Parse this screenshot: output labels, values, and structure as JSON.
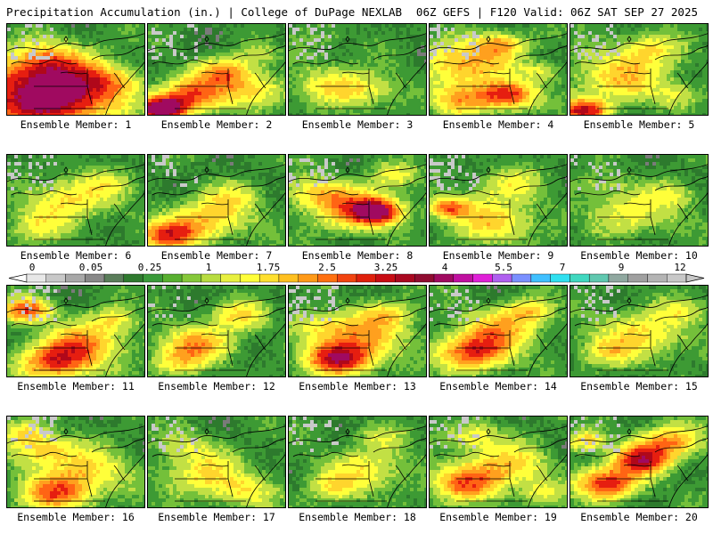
{
  "header": {
    "title_left": "Precipitation Accumulation (in.) | College of DuPage NEXLAB",
    "title_right": "06Z GEFS | F120 Valid: 06Z SAT SEP 27 2025"
  },
  "panels": [
    {
      "label": "Ensemble Member: 1",
      "hotspots": [
        [
          0.18,
          0.78,
          0.9,
          3.0
        ],
        [
          0.45,
          0.72,
          0.6,
          1.6
        ],
        [
          0.3,
          0.45,
          0.5,
          1.4
        ],
        [
          0.75,
          0.6,
          0.35,
          1.0
        ],
        [
          0.25,
          0.3,
          0.35,
          0.6
        ]
      ]
    },
    {
      "label": "Ensemble Member: 2",
      "hotspots": [
        [
          0.08,
          0.9,
          0.28,
          4.2
        ],
        [
          0.3,
          0.75,
          0.45,
          2.4
        ],
        [
          0.55,
          0.5,
          0.35,
          2.0
        ],
        [
          0.75,
          0.7,
          0.4,
          1.4
        ],
        [
          0.8,
          0.3,
          0.25,
          0.6
        ]
      ]
    },
    {
      "label": "Ensemble Member: 3",
      "hotspots": [
        [
          0.3,
          0.65,
          0.5,
          1.2
        ],
        [
          0.6,
          0.7,
          0.4,
          0.8
        ],
        [
          0.2,
          0.2,
          0.4,
          0.4
        ]
      ]
    },
    {
      "label": "Ensemble Member: 4",
      "hotspots": [
        [
          0.55,
          0.75,
          0.35,
          2.8
        ],
        [
          0.25,
          0.4,
          0.55,
          2.0
        ],
        [
          0.5,
          0.2,
          0.3,
          1.5
        ],
        [
          0.8,
          0.5,
          0.25,
          1.0
        ],
        [
          0.2,
          0.8,
          0.4,
          1.6
        ]
      ]
    },
    {
      "label": "Ensemble Member: 5",
      "hotspots": [
        [
          0.08,
          0.92,
          0.3,
          3.0
        ],
        [
          0.35,
          0.55,
          0.6,
          1.6
        ],
        [
          0.55,
          0.25,
          0.4,
          1.2
        ],
        [
          0.75,
          0.75,
          0.3,
          0.9
        ]
      ]
    },
    {
      "label": "Ensemble Member: 6",
      "hotspots": [
        [
          0.45,
          0.45,
          0.55,
          1.4
        ],
        [
          0.2,
          0.75,
          0.4,
          1.0
        ],
        [
          0.75,
          0.3,
          0.3,
          0.7
        ]
      ]
    },
    {
      "label": "Ensemble Member: 7",
      "hotspots": [
        [
          0.12,
          0.85,
          0.35,
          2.5
        ],
        [
          0.4,
          0.7,
          0.5,
          1.6
        ],
        [
          0.6,
          0.45,
          0.4,
          1.0
        ]
      ]
    },
    {
      "label": "Ensemble Member: 8",
      "hotspots": [
        [
          0.62,
          0.6,
          0.3,
          3.3
        ],
        [
          0.45,
          0.55,
          0.55,
          1.8
        ],
        [
          0.2,
          0.4,
          0.4,
          1.2
        ],
        [
          0.75,
          0.2,
          0.3,
          0.9
        ]
      ]
    },
    {
      "label": "Ensemble Member: 9",
      "hotspots": [
        [
          0.12,
          0.55,
          0.25,
          2.4
        ],
        [
          0.45,
          0.7,
          0.55,
          1.5
        ],
        [
          0.55,
          0.3,
          0.4,
          1.1
        ]
      ]
    },
    {
      "label": "Ensemble Member: 10",
      "hotspots": [
        [
          0.45,
          0.6,
          0.55,
          1.2
        ],
        [
          0.75,
          0.4,
          0.3,
          0.8
        ],
        [
          0.2,
          0.3,
          0.35,
          0.6
        ]
      ]
    },
    {
      "label": "Ensemble Member: 11",
      "hotspots": [
        [
          0.12,
          0.25,
          0.3,
          2.6
        ],
        [
          0.35,
          0.8,
          0.45,
          2.6
        ],
        [
          0.55,
          0.6,
          0.5,
          1.8
        ],
        [
          0.75,
          0.35,
          0.3,
          1.1
        ]
      ]
    },
    {
      "label": "Ensemble Member: 12",
      "hotspots": [
        [
          0.35,
          0.6,
          0.45,
          1.8
        ],
        [
          0.65,
          0.3,
          0.35,
          1.4
        ],
        [
          0.2,
          0.8,
          0.35,
          1.2
        ]
      ]
    },
    {
      "label": "Ensemble Member: 13",
      "hotspots": [
        [
          0.35,
          0.78,
          0.4,
          3.0
        ],
        [
          0.5,
          0.55,
          0.55,
          1.8
        ],
        [
          0.7,
          0.3,
          0.35,
          1.2
        ],
        [
          0.2,
          0.4,
          0.35,
          1.0
        ]
      ]
    },
    {
      "label": "Ensemble Member: 14",
      "hotspots": [
        [
          0.3,
          0.7,
          0.45,
          2.6
        ],
        [
          0.5,
          0.45,
          0.5,
          1.7
        ],
        [
          0.7,
          0.25,
          0.3,
          1.2
        ]
      ]
    },
    {
      "label": "Ensemble Member: 15",
      "hotspots": [
        [
          0.5,
          0.5,
          0.6,
          1.4
        ],
        [
          0.25,
          0.7,
          0.35,
          1.0
        ],
        [
          0.8,
          0.25,
          0.3,
          0.8
        ]
      ]
    },
    {
      "label": "Ensemble Member: 16",
      "hotspots": [
        [
          0.35,
          0.8,
          0.45,
          2.4
        ],
        [
          0.25,
          0.35,
          0.4,
          1.6
        ],
        [
          0.6,
          0.55,
          0.5,
          1.3
        ],
        [
          0.1,
          0.15,
          0.3,
          1.2
        ]
      ]
    },
    {
      "label": "Ensemble Member: 17",
      "hotspots": [
        [
          0.4,
          0.6,
          0.55,
          1.3
        ],
        [
          0.7,
          0.8,
          0.4,
          1.0
        ],
        [
          0.25,
          0.3,
          0.35,
          0.8
        ]
      ]
    },
    {
      "label": "Ensemble Member: 18",
      "hotspots": [
        [
          0.55,
          0.55,
          0.55,
          1.2
        ],
        [
          0.3,
          0.75,
          0.35,
          1.0
        ],
        [
          0.65,
          0.2,
          0.3,
          0.7
        ]
      ]
    },
    {
      "label": "Ensemble Member: 19",
      "hotspots": [
        [
          0.25,
          0.7,
          0.45,
          2.2
        ],
        [
          0.55,
          0.5,
          0.5,
          1.5
        ],
        [
          0.3,
          0.2,
          0.35,
          1.2
        ],
        [
          0.8,
          0.8,
          0.3,
          1.0
        ]
      ]
    },
    {
      "label": "Ensemble Member: 20",
      "hotspots": [
        [
          0.5,
          0.45,
          0.35,
          3.0
        ],
        [
          0.25,
          0.7,
          0.4,
          2.8
        ],
        [
          0.7,
          0.25,
          0.4,
          2.0
        ],
        [
          0.1,
          0.25,
          0.25,
          1.6
        ]
      ]
    }
  ],
  "colorbar": {
    "tick_labels": [
      "0",
      "0.05",
      "0.25",
      "1",
      "1.75",
      "2.5",
      "3.25",
      "4",
      "5.5",
      "7",
      "9",
      "12"
    ],
    "colors": [
      "#e8e8e8",
      "#c8c8c8",
      "#a8a8a8",
      "#888888",
      "#5a7d5a",
      "#2f7a2f",
      "#3a9a3a",
      "#58b030",
      "#86c83a",
      "#b8dc40",
      "#e8f040",
      "#ffff3a",
      "#ffe030",
      "#ffc020",
      "#ff9a18",
      "#ff7010",
      "#f24410",
      "#e0200c",
      "#c80c14",
      "#aa0820",
      "#900c30",
      "#a00a60",
      "#c010a0",
      "#e020d8",
      "#b060f0",
      "#7a90ff",
      "#40c0ff",
      "#30e0f0",
      "#40d8c0",
      "#60c8b0",
      "#90a8a0",
      "#a0a0a0",
      "#b4b4b4",
      "#c8c8c8"
    ]
  },
  "legend_colors": {
    "scale": [
      "#c9c9c9",
      "#7a7a7a",
      "#2d7a2d",
      "#3d9a34",
      "#74c03a",
      "#c2e044",
      "#ffff3a",
      "#ffd52d",
      "#ffa01e",
      "#ff6414",
      "#e61e10",
      "#b0081a",
      "#a00a60"
    ],
    "background": "#2e8b2e",
    "outline": "#000000"
  }
}
